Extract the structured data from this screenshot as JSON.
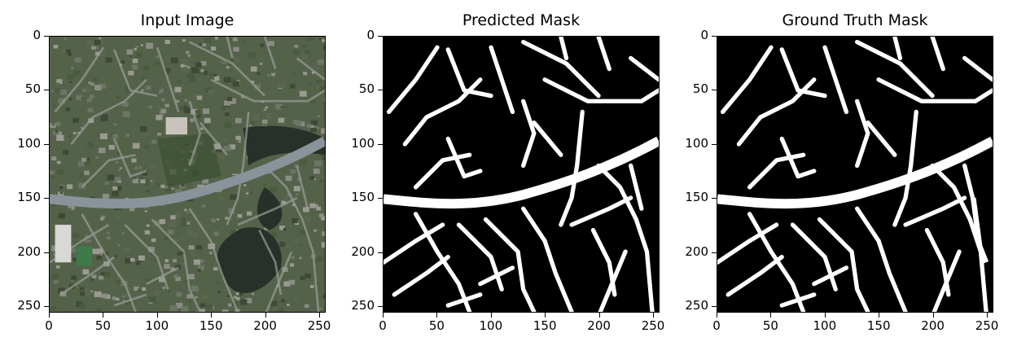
{
  "panels": [
    {
      "title": "Input Image",
      "kind": "photo",
      "x_ticks": [
        "0",
        "50",
        "100",
        "150",
        "200",
        "250"
      ],
      "y_ticks": [
        "0",
        "50",
        "100",
        "150",
        "200",
        "250"
      ],
      "colors": {
        "background": "#55624a",
        "road": "#8a929a",
        "water": "#283129",
        "veg": "#3c5030"
      }
    },
    {
      "title": "Predicted Mask",
      "kind": "mask",
      "x_ticks": [
        "0",
        "50",
        "100",
        "150",
        "200",
        "250"
      ],
      "y_ticks": [
        "0",
        "50",
        "100",
        "150",
        "200",
        "250"
      ],
      "colors": {
        "background": "#000000",
        "road": "#ffffff"
      }
    },
    {
      "title": "Ground Truth Mask",
      "kind": "mask",
      "x_ticks": [
        "0",
        "50",
        "100",
        "150",
        "200",
        "250"
      ],
      "y_ticks": [
        "0",
        "50",
        "100",
        "150",
        "200",
        "250"
      ],
      "colors": {
        "background": "#000000",
        "road": "#ffffff"
      }
    }
  ],
  "image_extent": [
    0,
    256
  ]
}
